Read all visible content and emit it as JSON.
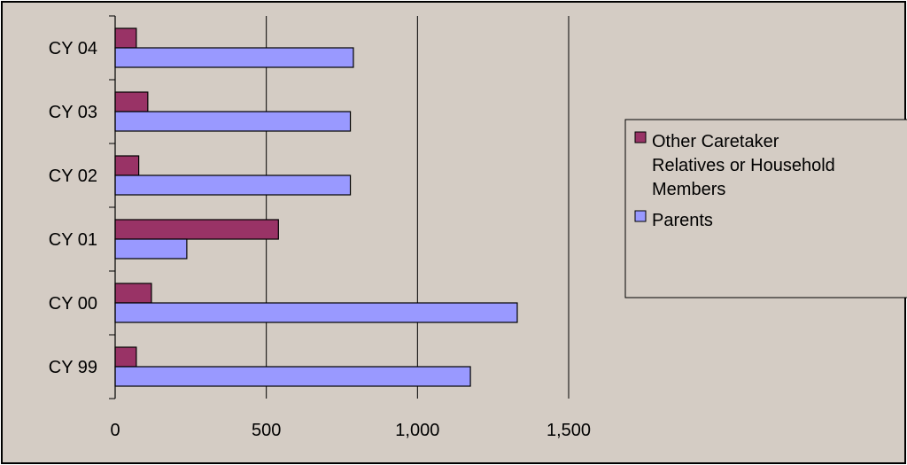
{
  "chart_data": {
    "type": "bar",
    "orientation": "horizontal",
    "categories": [
      "CY 99",
      "CY 00",
      "CY 01",
      "CY 02",
      "CY 03",
      "CY 04"
    ],
    "series": [
      {
        "name": "Other Caretaker Relatives or Household Members",
        "legend_lines": [
          "Other Caretaker",
          "Relatives or Household",
          "Members"
        ],
        "color": "#993366",
        "values": [
          70,
          120,
          540,
          78,
          108,
          70
        ]
      },
      {
        "name": "Parents",
        "legend_lines": [
          "Parents"
        ],
        "color": "#9999FF",
        "values": [
          1175,
          1330,
          237,
          778,
          778,
          788
        ]
      }
    ],
    "x_ticks": [
      "0",
      "500",
      "1,000",
      "1,500"
    ],
    "xlim": [
      0,
      1500
    ],
    "x_tick_values": [
      0,
      500,
      1000,
      1500
    ],
    "grid": "vertical major gridlines",
    "legend_position": "right",
    "title": "",
    "xlabel": "",
    "ylabel": "",
    "colors": {
      "chart_area": "#D4CCC4",
      "frame_border": "#000000",
      "gridline": "#000000",
      "legend_background": "#D4CCC4"
    }
  }
}
